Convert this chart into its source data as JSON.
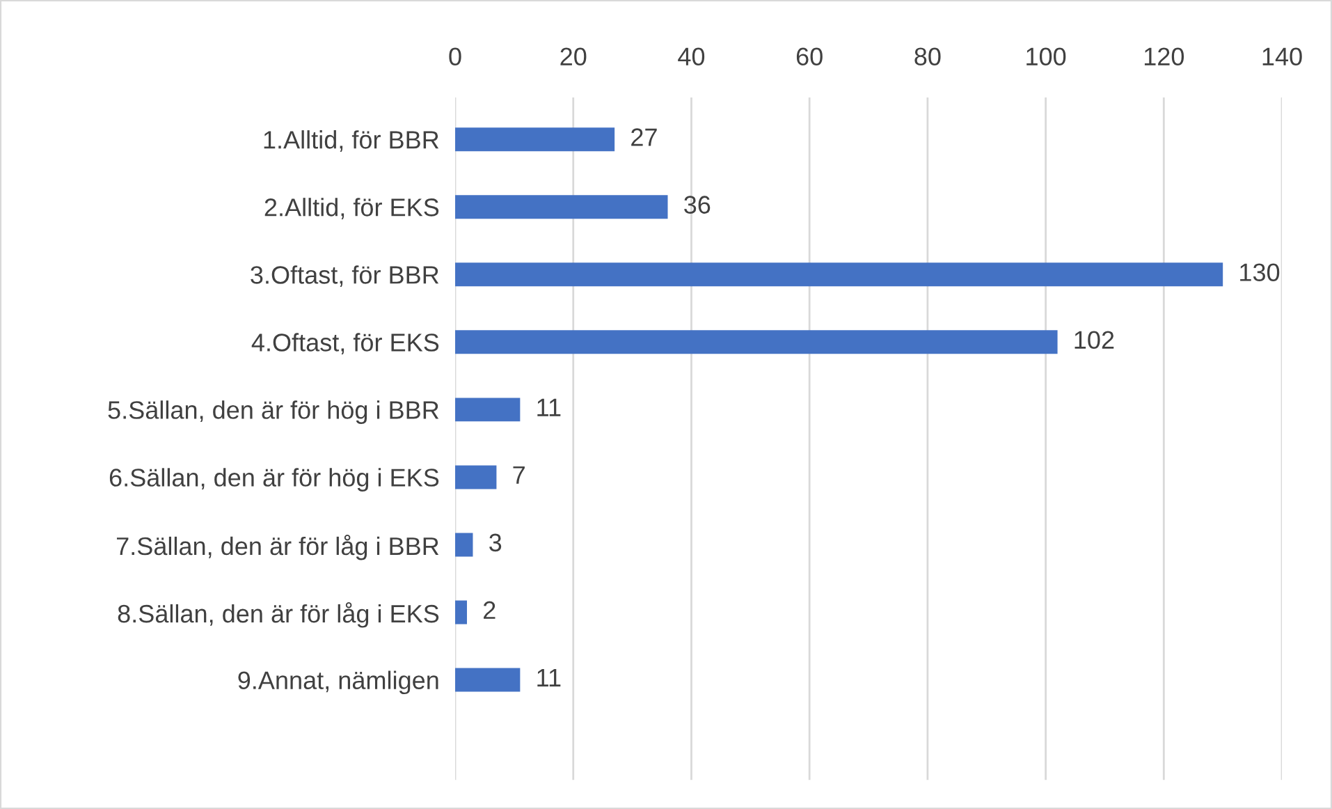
{
  "chart_data": {
    "type": "bar",
    "orientation": "horizontal",
    "categories": [
      "1.Alltid, för BBR",
      "2.Alltid, för EKS",
      "3.Oftast, för BBR",
      "4.Oftast, för EKS",
      "5.Sällan, den är för hög i BBR",
      "6.Sällan, den är för hög i EKS",
      "7.Sällan, den är för låg i BBR",
      "8.Sällan, den är för låg i EKS",
      "9.Annat, nämligen"
    ],
    "values": [
      27,
      36,
      130,
      102,
      11,
      7,
      3,
      2,
      11
    ],
    "color": "#4472c4",
    "xlim": [
      0,
      140
    ],
    "xticks": [
      0,
      20,
      40,
      60,
      80,
      100,
      120,
      140
    ],
    "grid": "x",
    "data_labels": true
  }
}
